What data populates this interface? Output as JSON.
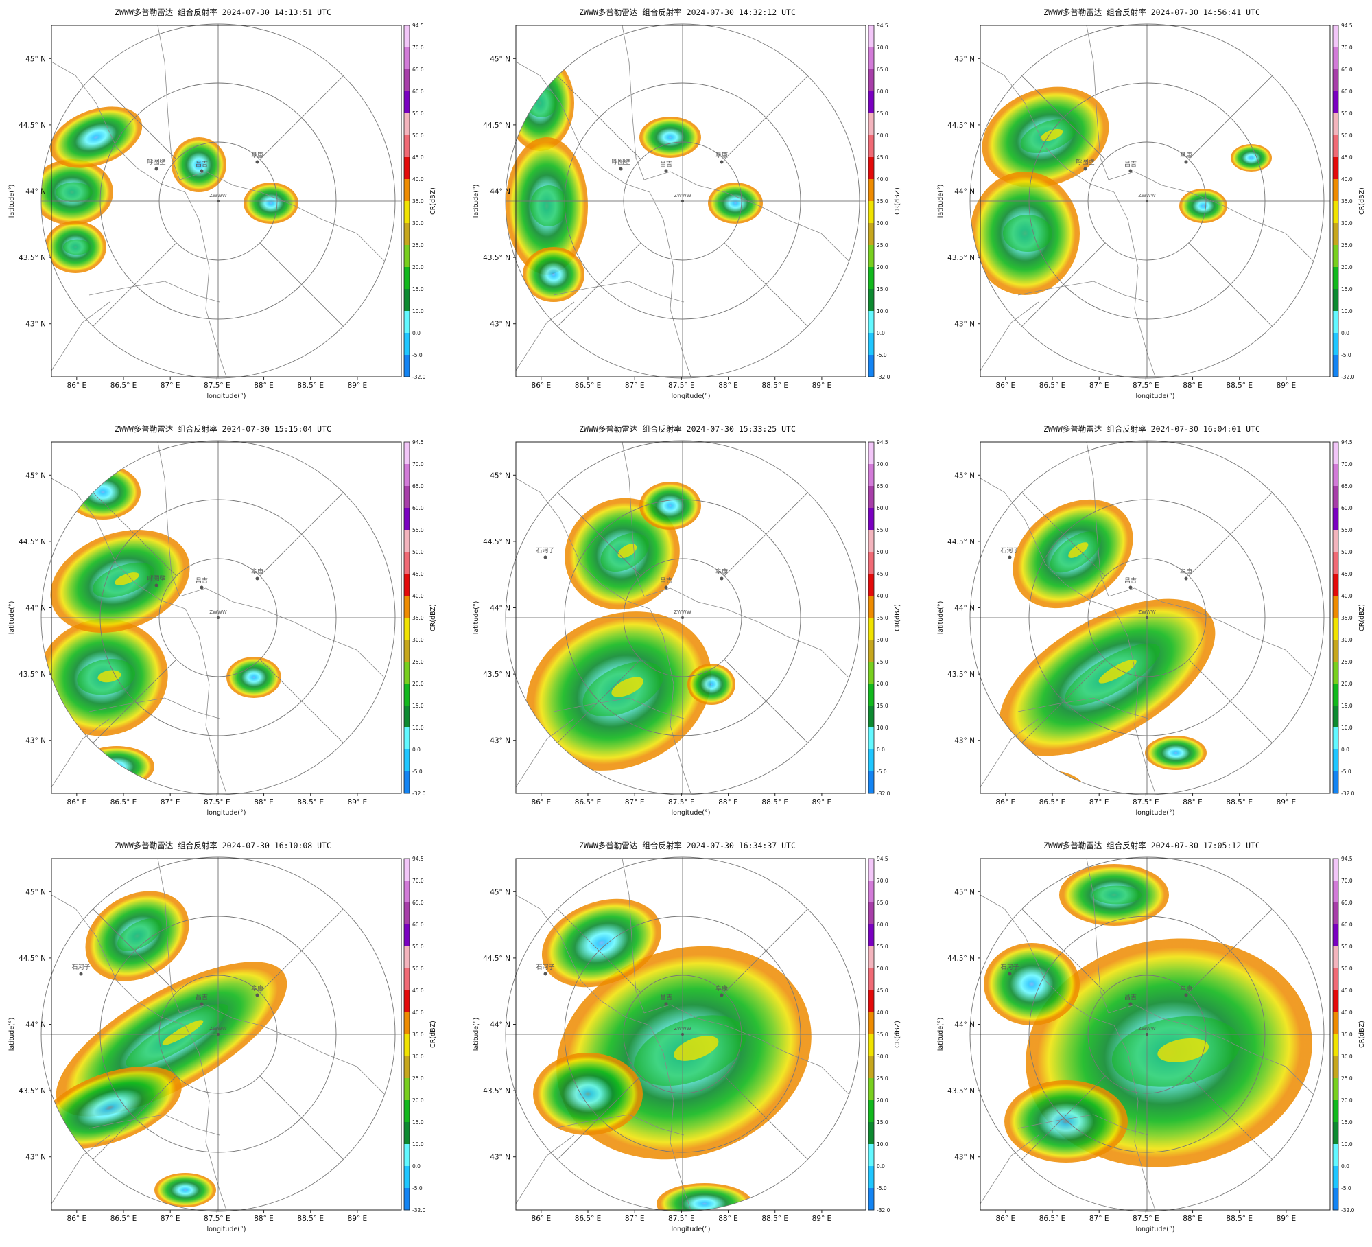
{
  "figure": {
    "title_prefix": "ZWWW多普勒雷达 组合反射率",
    "station": "ZWWW",
    "xlabel": "longitude(°)",
    "ylabel": "latitude(°)",
    "colorbar_label": "CR(dBZ)"
  },
  "axes": {
    "xticks": [
      "86° E",
      "86.5° E",
      "87° E",
      "87.5° E",
      "88° E",
      "88.5° E",
      "89° E"
    ],
    "yticks": [
      "45° N",
      "44.5° N",
      "44° N",
      "43.5° N",
      "43° N"
    ]
  },
  "colorbar": {
    "ticks": [
      "94.5",
      "70.0",
      "65.0",
      "60.0",
      "55.0",
      "50.0",
      "45.0",
      "40.0",
      "35.0",
      "30.0",
      "25.0",
      "20.0",
      "15.0",
      "10.0",
      "0.0",
      "-5.0",
      "-32.0"
    ],
    "colors": [
      "#f2c6f8",
      "#d27bd8",
      "#a73ea9",
      "#7a00c0",
      "#f3b4bd",
      "#f06a75",
      "#e30a0a",
      "#ee8b00",
      "#f0e200",
      "#c6a71d",
      "#78cf1e",
      "#12b81d",
      "#0d8a30",
      "#62f8ff",
      "#1fc6ff",
      "#1384f3",
      "#06009b"
    ]
  },
  "cities": [
    "呼图壁",
    "昌吉",
    "阜康",
    "石河子"
  ],
  "panels": [
    {
      "timestamp": "2024-07-30 14:13:51 UTC"
    },
    {
      "timestamp": "2024-07-30 14:32:12 UTC"
    },
    {
      "timestamp": "2024-07-30 14:56:41 UTC"
    },
    {
      "timestamp": "2024-07-30 15:15:04 UTC"
    },
    {
      "timestamp": "2024-07-30 15:33:25 UTC"
    },
    {
      "timestamp": "2024-07-30 16:04:01 UTC"
    },
    {
      "timestamp": "2024-07-30 16:10:08 UTC"
    },
    {
      "timestamp": "2024-07-30 16:34:37 UTC"
    },
    {
      "timestamp": "2024-07-30 17:05:12 UTC"
    }
  ],
  "chart_data": {
    "type": "radar-composite-reflectivity-map-grid",
    "rows": 3,
    "cols": 3,
    "lon_range": [
      85.73,
      89.47
    ],
    "lat_range": [
      42.6,
      45.25
    ],
    "radar_center": {
      "lon": 87.65,
      "lat": 43.92
    }
  }
}
